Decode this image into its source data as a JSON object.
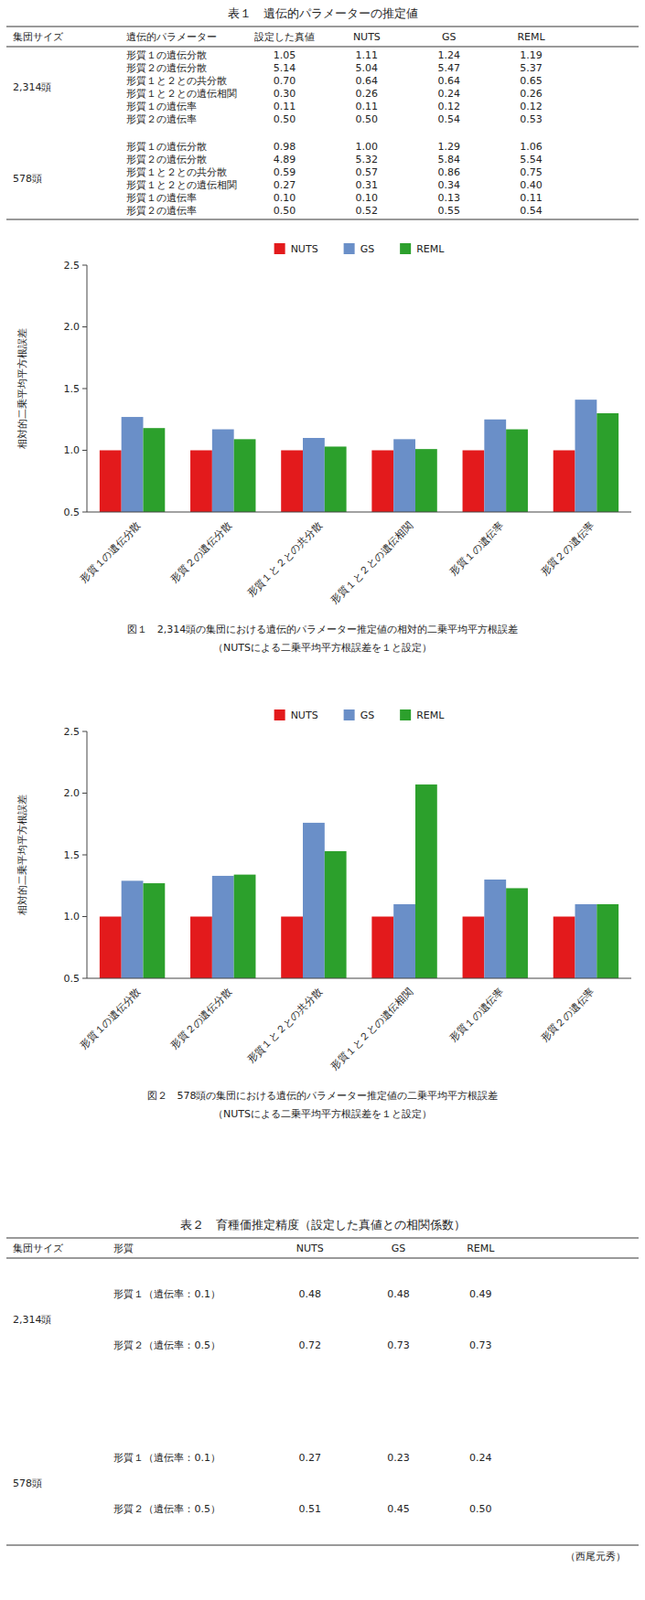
{
  "chart_data": [
    {
      "type": "table",
      "title": "表１　遺伝的パラメーターの推定値",
      "headers": [
        "集団サイズ",
        "遺伝的パラメーター",
        "設定した真値",
        "NUTS",
        "GS",
        "REML"
      ],
      "groups": [
        {
          "label": "2,314頭",
          "rows": [
            [
              "形質１の遺伝分散",
              "1.05",
              "1.11",
              "1.24",
              "1.19"
            ],
            [
              "形質２の遺伝分散",
              "5.14",
              "5.04",
              "5.47",
              "5.37"
            ],
            [
              "形質１と２との共分散",
              "0.70",
              "0.64",
              "0.64",
              "0.65"
            ],
            [
              "形質１と２との遺伝相関",
              "0.30",
              "0.26",
              "0.24",
              "0.26"
            ],
            [
              "形質１の遺伝率",
              "0.11",
              "0.11",
              "0.12",
              "0.12"
            ],
            [
              "形質２の遺伝率",
              "0.50",
              "0.50",
              "0.54",
              "0.53"
            ]
          ]
        },
        {
          "label": "578頭",
          "rows": [
            [
              "形質１の遺伝分散",
              "0.98",
              "1.00",
              "1.29",
              "1.06"
            ],
            [
              "形質２の遺伝分散",
              "4.89",
              "5.32",
              "5.84",
              "5.54"
            ],
            [
              "形質１と２との共分散",
              "0.59",
              "0.57",
              "0.86",
              "0.75"
            ],
            [
              "形質１と２との遺伝相関",
              "0.27",
              "0.31",
              "0.34",
              "0.40"
            ],
            [
              "形質１の遺伝率",
              "0.10",
              "0.10",
              "0.13",
              "0.11"
            ],
            [
              "形質２の遺伝率",
              "0.50",
              "0.52",
              "0.55",
              "0.54"
            ]
          ]
        }
      ]
    },
    {
      "type": "bar",
      "title": "図１　2,314頭の集団における遺伝的パラメーター推定値の相対的二乗平均平方根誤差",
      "subtitle": "（NUTSによる二乗平均平方根誤差を１と設定）",
      "y_label": "相対的二乗平均平方根誤差",
      "categories": [
        "形質１の遺伝分散",
        "形質２の遺伝分散",
        "形質１と２との共分散",
        "形質１と２との遺伝相関",
        "形質１の遺伝率",
        "形質２の遺伝率"
      ],
      "series": [
        {
          "name": "NUTS",
          "color": "#e31a1c",
          "values": [
            1.0,
            1.0,
            1.0,
            1.0,
            1.0,
            1.0
          ]
        },
        {
          "name": "GS",
          "color": "#6a8fc8",
          "values": [
            1.27,
            1.17,
            1.1,
            1.09,
            1.25,
            1.41
          ]
        },
        {
          "name": "REML",
          "color": "#2ca02c",
          "values": [
            1.18,
            1.09,
            1.03,
            1.01,
            1.17,
            1.3
          ]
        }
      ],
      "ylim": [
        0.5,
        2.5
      ],
      "yticks": [
        0.5,
        {
          "value": 1.0,
          "label": "1.0"
        },
        1.5,
        {
          "value": 2.0,
          "label": "2.0"
        },
        2.5
      ],
      "grid": false,
      "legend": "top"
    },
    {
      "type": "bar",
      "title": "図２　578頭の集団における遺伝的パラメーター推定値の二乗平均平方根誤差",
      "subtitle": "（NUTSによる二乗平均平方根誤差を１と設定）",
      "y_label": "相対的二乗平均平方根誤差",
      "categories": [
        "形質１の遺伝分散",
        "形質２の遺伝分散",
        "形質１と２との共分散",
        "形質１と２との遺伝相関",
        "形質１の遺伝率",
        "形質２の遺伝率"
      ],
      "series": [
        {
          "name": "NUTS",
          "color": "#e31a1c",
          "values": [
            1.0,
            1.0,
            1.0,
            1.0,
            1.0,
            1.0
          ]
        },
        {
          "name": "GS",
          "color": "#6a8fc8",
          "values": [
            1.29,
            1.33,
            1.76,
            1.1,
            1.3,
            1.1
          ]
        },
        {
          "name": "REML",
          "color": "#2ca02c",
          "values": [
            1.27,
            1.34,
            1.53,
            2.07,
            1.23,
            1.1
          ]
        }
      ],
      "ylim": [
        0.5,
        2.5
      ],
      "yticks": [
        0.5,
        {
          "value": 1.0,
          "label": "1.0"
        },
        1.5,
        {
          "value": 2.0,
          "label": "2.0"
        },
        2.5
      ],
      "grid": false,
      "legend": "top"
    },
    {
      "type": "table",
      "title": "表２　育種価推定精度（設定した真値との相関係数）",
      "headers": [
        "集団サイズ",
        "形質",
        "NUTS",
        "GS",
        "REML"
      ],
      "groups": [
        {
          "label": "2,314頭",
          "rows": [
            [
              "形質１（遺伝率：0.1）",
              "0.48",
              "0.48",
              "0.49"
            ],
            [
              "形質２（遺伝率：0.5）",
              "0.72",
              "0.73",
              "0.73"
            ]
          ]
        },
        {
          "label": "578頭",
          "rows": [
            [
              "形質１（遺伝率：0.1）",
              "0.27",
              "0.23",
              "0.24"
            ],
            [
              "形質２（遺伝率：0.5）",
              "0.51",
              "0.45",
              "0.50"
            ]
          ]
        }
      ],
      "annotations": [
        "（西尾元秀）"
      ]
    }
  ]
}
